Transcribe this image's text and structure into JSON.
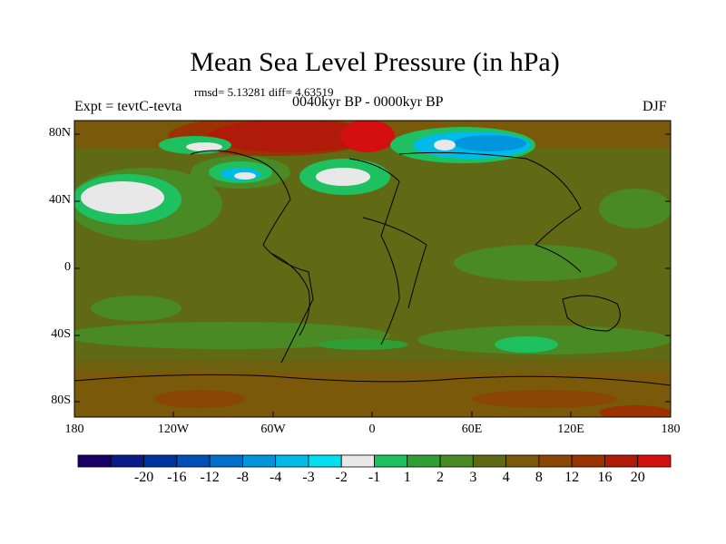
{
  "title": "Mean Sea Level Pressure (in hPa)",
  "stats": "rmsd= 5.13281 diff= 4.63519",
  "left_label": "Expt = tevtC-tevta",
  "center_label": "0040kyr BP - 0000kyr BP",
  "right_label": "DJF",
  "lat_labels": [
    "80N",
    "40N",
    "0",
    "40S",
    "80S"
  ],
  "lon_labels": [
    "180",
    "120W",
    "60W",
    "0",
    "60E",
    "120E",
    "180"
  ],
  "colorbar": {
    "colors": [
      "#1a0066",
      "#0a1a8a",
      "#0033a0",
      "#0050b8",
      "#0070cc",
      "#0095dd",
      "#00bbe8",
      "#00e0f0",
      "#e8e8e8",
      "#1fc060",
      "#2e9e35",
      "#4a8a25",
      "#606a14",
      "#7a5a0a",
      "#8a4605",
      "#9a3202",
      "#b01a08",
      "#d40f0f"
    ],
    "labels": [
      "-20",
      "-16",
      "-12",
      "-8",
      "-4",
      "-3",
      "-2",
      "-1",
      "1",
      "2",
      "3",
      "4",
      "8",
      "12",
      "16",
      "20"
    ]
  }
}
